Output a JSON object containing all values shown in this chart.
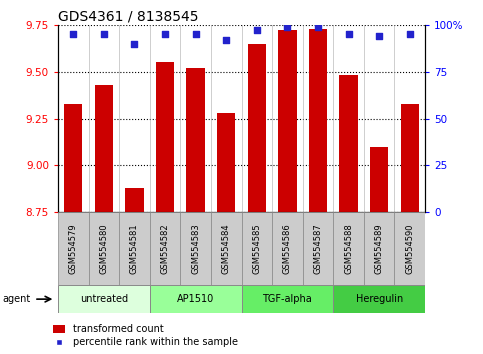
{
  "title": "GDS4361 / 8138545",
  "samples": [
    "GSM554579",
    "GSM554580",
    "GSM554581",
    "GSM554582",
    "GSM554583",
    "GSM554584",
    "GSM554585",
    "GSM554586",
    "GSM554587",
    "GSM554588",
    "GSM554589",
    "GSM554590"
  ],
  "bar_values": [
    9.33,
    9.43,
    8.88,
    9.55,
    9.52,
    9.28,
    9.65,
    9.72,
    9.73,
    9.48,
    9.1,
    9.33
  ],
  "percentile_values": [
    95,
    95,
    90,
    95,
    95,
    92,
    97,
    99,
    99,
    95,
    94,
    95
  ],
  "y_min": 8.75,
  "y_max": 9.75,
  "y_ticks": [
    8.75,
    9.0,
    9.25,
    9.5,
    9.75
  ],
  "right_y_ticks": [
    0,
    25,
    50,
    75,
    100
  ],
  "right_y_labels": [
    "0",
    "25",
    "50",
    "75",
    "100%"
  ],
  "bar_color": "#cc0000",
  "dot_color": "#2222cc",
  "agent_groups": [
    {
      "label": "untreated",
      "start": 0,
      "end": 3,
      "color": "#ddffdd"
    },
    {
      "label": "AP1510",
      "start": 3,
      "end": 6,
      "color": "#99ff99"
    },
    {
      "label": "TGF-alpha",
      "start": 6,
      "end": 9,
      "color": "#66ee66"
    },
    {
      "label": "Heregulin",
      "start": 9,
      "end": 12,
      "color": "#44cc44"
    }
  ],
  "legend_bar_label": "transformed count",
  "legend_dot_label": "percentile rank within the sample",
  "title_fontsize": 10,
  "tick_fontsize": 7.5,
  "sample_fontsize": 6,
  "agent_fontsize": 7,
  "legend_fontsize": 7
}
